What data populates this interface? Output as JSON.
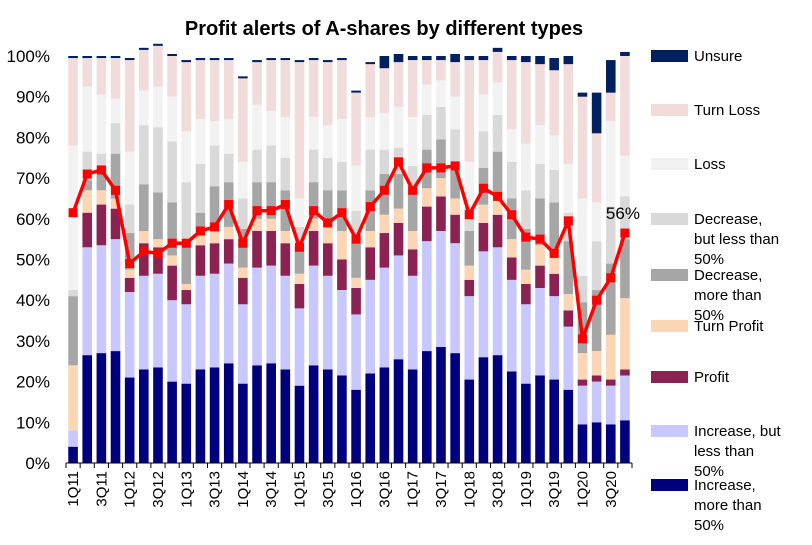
{
  "chart_data": {
    "type": "bar",
    "stacked": true,
    "title": "Profit alerts of A-shares by different types",
    "xlabel": "",
    "ylabel": "",
    "ylim": [
      0,
      100
    ],
    "y_ticks": [
      "0%",
      "10%",
      "20%",
      "30%",
      "40%",
      "50%",
      "60%",
      "70%",
      "80%",
      "90%",
      "100%"
    ],
    "categories": [
      "1Q11",
      "2Q11",
      "3Q11",
      "4Q11",
      "1Q12",
      "2Q12",
      "3Q12",
      "4Q12",
      "1Q13",
      "2Q13",
      "3Q13",
      "4Q13",
      "1Q14",
      "2Q14",
      "3Q14",
      "4Q14",
      "1Q15",
      "2Q15",
      "3Q15",
      "4Q15",
      "1Q16",
      "2Q16",
      "3Q16",
      "4Q16",
      "1Q17",
      "2Q17",
      "3Q17",
      "4Q17",
      "1Q18",
      "2Q18",
      "3Q18",
      "4Q18",
      "1Q19",
      "2Q19",
      "3Q19",
      "4Q19",
      "1Q20",
      "2Q20",
      "3Q20",
      "4Q20"
    ],
    "x_tick_labels": [
      "1Q11",
      "",
      "3Q11",
      "",
      "1Q12",
      "",
      "3Q12",
      "",
      "1Q13",
      "",
      "3Q13",
      "",
      "1Q14",
      "",
      "3Q14",
      "",
      "1Q15",
      "",
      "3Q15",
      "",
      "1Q16",
      "",
      "3Q16",
      "",
      "1Q17",
      "",
      "3Q17",
      "",
      "1Q18",
      "",
      "3Q18",
      "",
      "1Q19",
      "",
      "3Q19",
      "",
      "1Q20",
      "",
      "3Q20",
      ""
    ],
    "series": [
      {
        "name": "Increase, more than 50%",
        "color": "#00007f",
        "values": [
          4,
          26.5,
          27,
          27.5,
          21,
          23,
          23.5,
          20,
          19.5,
          23,
          23.5,
          24.5,
          19.5,
          24,
          24.5,
          23,
          19,
          24,
          23,
          21.5,
          18,
          22,
          23.5,
          25.5,
          23,
          27.5,
          28.5,
          27,
          20.5,
          26,
          26.5,
          22.5,
          19.5,
          21.5,
          20.5,
          18,
          9.5,
          10,
          9.5,
          10.5
        ]
      },
      {
        "name": "Increase, but less than 50%",
        "color": "#c8c8ff",
        "values": [
          4,
          26.5,
          26.5,
          27.5,
          21,
          23,
          23,
          20,
          19.5,
          23,
          23,
          24.5,
          19.5,
          24,
          24,
          23,
          19,
          24.5,
          23,
          21,
          18.5,
          23,
          24.5,
          25.5,
          23,
          27,
          28.5,
          27,
          20.5,
          26,
          26.5,
          22.5,
          19.5,
          21.5,
          20.5,
          15.5,
          9.5,
          10,
          9.5,
          11
        ]
      },
      {
        "name": "Profit",
        "color": "#8b2252",
        "values": [
          0,
          8.5,
          10,
          7.5,
          3.5,
          8,
          6.5,
          8.5,
          3.5,
          7.5,
          7.5,
          6,
          6.5,
          9,
          8.5,
          8,
          6,
          8.5,
          8,
          7.5,
          6.5,
          8,
          8.5,
          8,
          6.5,
          8.5,
          8.5,
          7,
          4,
          7,
          8,
          5.5,
          5,
          5.5,
          5.5,
          4,
          1.5,
          1.5,
          1.5,
          1.5
        ]
      },
      {
        "name": "Turn Profit",
        "color": "#fcd5b4",
        "values": [
          16,
          5.5,
          3.5,
          2.5,
          2,
          3,
          2,
          2.5,
          1.5,
          2.5,
          3,
          3,
          2.5,
          3,
          3,
          3,
          2.5,
          3,
          4,
          7,
          2.5,
          4,
          4.5,
          3.5,
          4.5,
          4.5,
          4.5,
          4,
          3.5,
          4.5,
          5,
          4.5,
          3.5,
          5,
          5,
          4,
          6.5,
          6,
          11,
          17.5
        ]
      },
      {
        "name": "Decrease, more than 50%",
        "color": "#a6a6a6",
        "values": [
          17,
          2.5,
          6,
          11,
          9,
          11.5,
          11.5,
          13,
          9,
          5.5,
          11,
          11,
          9.5,
          9,
          9,
          10,
          7,
          9,
          9,
          10,
          9,
          10,
          10,
          8.5,
          10,
          9.5,
          9.5,
          7,
          8.5,
          9,
          10.5,
          10,
          10,
          11.5,
          12.5,
          13,
          12.5,
          15,
          17.5,
          14.5
        ]
      },
      {
        "name": "Decrease, but less than 50%",
        "color": "#d9d9d9",
        "values": [
          1.5,
          7,
          3,
          7.5,
          7,
          14.5,
          16,
          15,
          16,
          12,
          10,
          7,
          7.5,
          8,
          9,
          8,
          4.5,
          8,
          8,
          7,
          7.5,
          10,
          6,
          6.5,
          6,
          8.5,
          8,
          10,
          6,
          9,
          9,
          9,
          9.5,
          8.5,
          8,
          7,
          6.5,
          12,
          14,
          10.5
        ]
      },
      {
        "name": "Loss",
        "color": "#f2f2f2",
        "values": [
          35.5,
          16,
          14.5,
          6,
          13,
          8.5,
          10,
          11,
          12.5,
          11,
          6,
          8.5,
          9,
          11,
          8.5,
          10,
          7,
          8,
          8,
          10.5,
          11,
          8,
          9,
          10,
          12,
          7.5,
          6.5,
          8,
          11,
          9,
          8,
          8,
          11.5,
          9.5,
          8.5,
          12,
          19,
          9.5,
          21,
          10
        ]
      },
      {
        "name": "Turn Loss",
        "color": "#f2dcdb",
        "values": [
          21.5,
          7,
          9,
          10,
          22.5,
          10,
          10,
          10,
          17,
          14.5,
          15,
          14.5,
          20.5,
          10.5,
          12.5,
          14,
          33.5,
          14,
          15.5,
          14.5,
          18,
          13,
          11,
          11,
          14,
          6,
          5,
          8.5,
          25,
          8.5,
          7.5,
          17,
          20,
          15,
          16,
          24.5,
          25,
          17,
          7,
          24.5
        ]
      },
      {
        "name": "Unsure",
        "color": "#002060",
        "values": [
          0.5,
          0.5,
          0.5,
          0.5,
          0.5,
          0.5,
          0.5,
          0.5,
          0.5,
          0.5,
          0.5,
          0.5,
          0.5,
          0.5,
          0.5,
          0.5,
          0.5,
          0.5,
          0.5,
          0.5,
          0.5,
          0.5,
          3,
          2,
          1,
          1,
          1,
          2,
          1,
          1,
          1,
          1,
          1.5,
          2,
          3,
          2,
          1,
          10,
          8,
          1
        ]
      }
    ],
    "line": {
      "name": "Total positive share",
      "color": "#ff0000",
      "values": [
        61.5,
        71,
        72,
        67,
        49,
        52,
        51.5,
        54,
        54,
        57,
        58,
        63.5,
        54,
        62,
        62,
        63.5,
        53,
        62,
        59,
        61.5,
        55,
        63,
        67,
        74,
        67,
        72.5,
        72.5,
        73,
        61,
        67.5,
        65.5,
        61,
        55.5,
        55,
        51.5,
        59.5,
        30.5,
        40,
        45.5,
        56.5
      ]
    },
    "annotations": [
      {
        "text": "56%",
        "category": "4Q20",
        "value": 56.5
      }
    ],
    "legend_position": "right",
    "legend": [
      {
        "lines": [
          "Unsure"
        ],
        "color": "#002060"
      },
      {
        "lines": [
          "Turn Loss"
        ],
        "color": "#f2dcdb"
      },
      {
        "lines": [
          "Loss"
        ],
        "color": "#f2f2f2"
      },
      {
        "lines": [
          "Decrease,",
          "but less than",
          "50%"
        ],
        "color": "#d9d9d9"
      },
      {
        "lines": [
          "Decrease,",
          "more than",
          "50%"
        ],
        "color": "#a6a6a6"
      },
      {
        "lines": [
          "Turn Profit"
        ],
        "color": "#fcd5b4"
      },
      {
        "lines": [
          "Profit"
        ],
        "color": "#8b2252"
      },
      {
        "lines": [
          "Increase, but",
          "less than",
          "50%"
        ],
        "color": "#c8c8ff"
      },
      {
        "lines": [
          "Increase,",
          "more than",
          "50%"
        ],
        "color": "#00007f"
      }
    ]
  }
}
